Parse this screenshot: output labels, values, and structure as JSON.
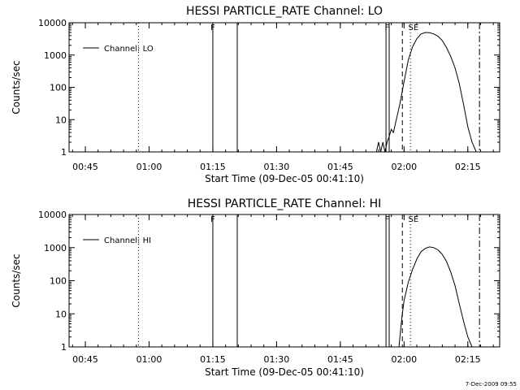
{
  "timestamp": "7-Dec-2009 09:55",
  "chart_data": [
    {
      "type": "line",
      "title": "HESSI PARTICLE_RATE Channel: LO",
      "xlabel": "Start Time (09-Dec-05 00:41:10)",
      "ylabel": "Counts/sec",
      "yscale": "log",
      "ylim": [
        1,
        10000
      ],
      "xlim_min": [
        41.17,
        142.5
      ],
      "xticks": [
        "00:45",
        "01:00",
        "01:15",
        "01:30",
        "01:45",
        "02:00",
        "02:15"
      ],
      "yticks": [
        "1",
        "10",
        "100",
        "1000",
        "10000"
      ],
      "legend": [
        "Channel: LO"
      ],
      "legend_position": "top-left",
      "annotations": [
        {
          "label": "F",
          "time": "01:15"
        },
        {
          "label": "F",
          "time": "01:55"
        },
        {
          "label": "SE",
          "time": "02:02"
        }
      ],
      "series": [
        {
          "name": "Channel: LO",
          "x_min": [
            113.5,
            114.0,
            114.5,
            115.0,
            115.5,
            116.0,
            116.5,
            117.0,
            117.5,
            118.0,
            119.0,
            120.0,
            121.0,
            122.0,
            123.0,
            124.0,
            125.0,
            126.0,
            127.0,
            128.0,
            129.0,
            130.0,
            131.0,
            132.0,
            133.0,
            134.0,
            135.0,
            136.0,
            137.0
          ],
          "y": [
            1,
            2,
            1,
            2,
            1,
            2,
            3,
            5,
            4,
            8,
            30,
            150,
            700,
            1800,
            3200,
            4500,
            5000,
            4900,
            4500,
            3800,
            2800,
            1700,
            900,
            400,
            130,
            30,
            6,
            2,
            1
          ]
        }
      ]
    },
    {
      "type": "line",
      "title": "HESSI PARTICLE_RATE Channel: HI",
      "xlabel": "Start Time (09-Dec-05 00:41:10)",
      "ylabel": "Counts/sec",
      "yscale": "log",
      "ylim": [
        1,
        10000
      ],
      "xlim_min": [
        41.17,
        142.5
      ],
      "xticks": [
        "00:45",
        "01:00",
        "01:15",
        "01:30",
        "01:45",
        "02:00",
        "02:15"
      ],
      "yticks": [
        "1",
        "10",
        "100",
        "1000",
        "10000"
      ],
      "legend": [
        "Channel: HI"
      ],
      "legend_position": "top-left",
      "annotations": [
        {
          "label": "F",
          "time": "01:15"
        },
        {
          "label": "F",
          "time": "01:55"
        },
        {
          "label": "SE",
          "time": "02:02"
        }
      ],
      "series": [
        {
          "name": "Channel: HI",
          "x_min": [
            118.8,
            119.5,
            120.0,
            121.0,
            122.0,
            123.0,
            124.0,
            125.0,
            126.0,
            127.0,
            128.0,
            129.0,
            130.0,
            131.0,
            132.0,
            133.0,
            134.0,
            135.0,
            136.0
          ],
          "y": [
            1,
            8,
            25,
            90,
            220,
            450,
            750,
            950,
            1050,
            1000,
            850,
            620,
            380,
            180,
            70,
            20,
            6,
            2,
            1
          ]
        }
      ]
    }
  ]
}
